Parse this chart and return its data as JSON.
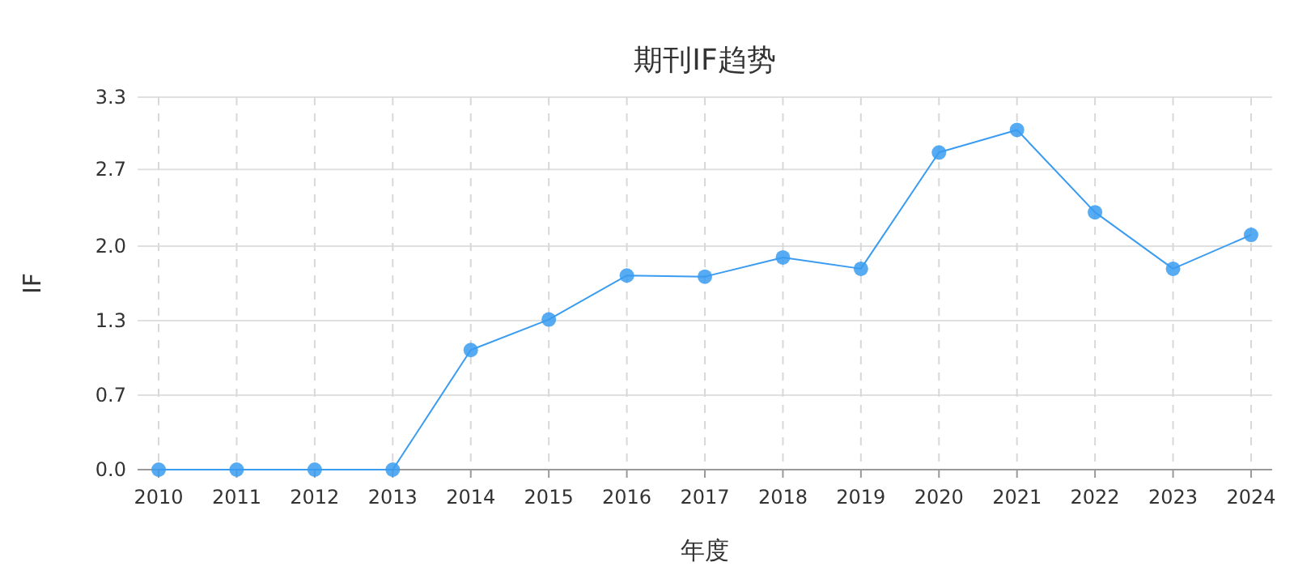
{
  "chart_data": {
    "type": "line",
    "title": "期刊IF趋势",
    "xlabel": "年度",
    "ylabel": "IF",
    "categories": [
      "2010",
      "2011",
      "2012",
      "2013",
      "2014",
      "2015",
      "2016",
      "2017",
      "2018",
      "2019",
      "2020",
      "2021",
      "2022",
      "2023",
      "2024"
    ],
    "series": [
      {
        "color": "#3a9cf0",
        "values": [
          0,
          0,
          0,
          0,
          1.06,
          1.33,
          1.72,
          1.71,
          1.88,
          1.78,
          2.81,
          3.01,
          2.28,
          1.78,
          2.08
        ]
      }
    ],
    "ylim": [
      0,
      3.3
    ],
    "yticks": [
      {
        "value": 0,
        "label": "0.0"
      },
      {
        "value": 0.66,
        "label": "0.7"
      },
      {
        "value": 1.32,
        "label": "1.3"
      },
      {
        "value": 1.98,
        "label": "2.0"
      },
      {
        "value": 2.66,
        "label": "2.7"
      },
      {
        "value": 3.3,
        "label": "3.3"
      }
    ],
    "grid": true,
    "marker": "circle",
    "line_style": "solid"
  }
}
